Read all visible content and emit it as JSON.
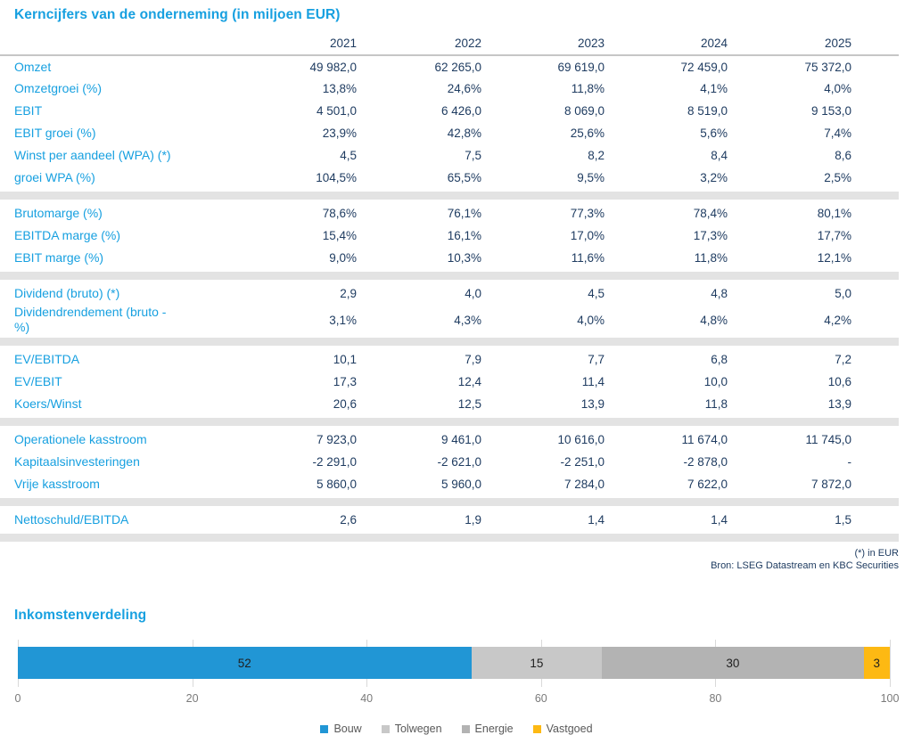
{
  "table": {
    "title": "Kerncijfers van de onderneming (in miljoen EUR)",
    "years": [
      "2021",
      "2022",
      "2023",
      "2024",
      "2025"
    ],
    "sections": [
      {
        "rows": [
          {
            "label": "Omzet",
            "values": [
              "49 982,0",
              "62 265,0",
              "69 619,0",
              "72 459,0",
              "75 372,0"
            ]
          },
          {
            "label": "Omzetgroei (%)",
            "values": [
              "13,8%",
              "24,6%",
              "11,8%",
              "4,1%",
              "4,0%"
            ]
          },
          {
            "label": "EBIT",
            "values": [
              "4 501,0",
              "6 426,0",
              "8 069,0",
              "8 519,0",
              "9 153,0"
            ]
          },
          {
            "label": "EBIT groei (%)",
            "values": [
              "23,9%",
              "42,8%",
              "25,6%",
              "5,6%",
              "7,4%"
            ]
          },
          {
            "label": "Winst per aandeel (WPA) (*)",
            "values": [
              "4,5",
              "7,5",
              "8,2",
              "8,4",
              "8,6"
            ]
          },
          {
            "label": "groei WPA (%)",
            "values": [
              "104,5%",
              "65,5%",
              "9,5%",
              "3,2%",
              "2,5%"
            ]
          }
        ]
      },
      {
        "rows": [
          {
            "label": "Brutomarge (%)",
            "values": [
              "78,6%",
              "76,1%",
              "77,3%",
              "78,4%",
              "80,1%"
            ]
          },
          {
            "label": "EBITDA marge (%)",
            "values": [
              "15,4%",
              "16,1%",
              "17,0%",
              "17,3%",
              "17,7%"
            ]
          },
          {
            "label": "EBIT marge (%)",
            "values": [
              "9,0%",
              "10,3%",
              "11,6%",
              "11,8%",
              "12,1%"
            ]
          }
        ]
      },
      {
        "rows": [
          {
            "label": "Dividend (bruto) (*)",
            "values": [
              "2,9",
              "4,0",
              "4,5",
              "4,8",
              "5,0"
            ]
          },
          {
            "label": "Dividendrendement (bruto -\n%)",
            "values": [
              "3,1%",
              "4,3%",
              "4,0%",
              "4,8%",
              "4,2%"
            ]
          }
        ]
      },
      {
        "rows": [
          {
            "label": "EV/EBITDA",
            "values": [
              "10,1",
              "7,9",
              "7,7",
              "6,8",
              "7,2"
            ]
          },
          {
            "label": "EV/EBIT",
            "values": [
              "17,3",
              "12,4",
              "11,4",
              "10,0",
              "10,6"
            ]
          },
          {
            "label": "Koers/Winst",
            "values": [
              "20,6",
              "12,5",
              "13,9",
              "11,8",
              "13,9"
            ]
          }
        ]
      },
      {
        "rows": [
          {
            "label": "Operationele kasstroom",
            "values": [
              "7 923,0",
              "9 461,0",
              "10 616,0",
              "11 674,0",
              "11 745,0"
            ]
          },
          {
            "label": "Kapitaalsinvesteringen",
            "values": [
              "-2 291,0",
              "-2 621,0",
              "-2 251,0",
              "-2 878,0",
              "-"
            ]
          },
          {
            "label": "Vrije kasstroom",
            "values": [
              "5 860,0",
              "5 960,0",
              "7 284,0",
              "7 622,0",
              "7 872,0"
            ]
          }
        ]
      },
      {
        "rows": [
          {
            "label": "Nettoschuld/EBITDA",
            "values": [
              "2,6",
              "1,9",
              "1,4",
              "1,4",
              "1,5"
            ]
          }
        ]
      }
    ],
    "footnotes": [
      "(*) in EUR",
      "Bron: LSEG Datastream en KBC Securities"
    ]
  },
  "chart_data": {
    "type": "bar",
    "subtype": "horizontal-stacked",
    "title": "Inkomstenverdeling",
    "categories": [
      "Bouw",
      "Tolwegen",
      "Energie",
      "Vastgoed"
    ],
    "values": [
      52,
      15,
      30,
      3
    ],
    "colors": [
      "#2196d5",
      "#c8c8c8",
      "#b3b3b3",
      "#fdb913"
    ],
    "xlim": [
      0,
      100
    ],
    "xticks": [
      0,
      20,
      40,
      60,
      80,
      100
    ],
    "grid": true,
    "legend_position": "bottom-center",
    "colors_meta": {
      "accent_blue": "#17a0e0",
      "value_navy": "#1f3c61",
      "separator_gray": "#e3e3e3",
      "axis_gray": "#7a7a7a"
    }
  }
}
